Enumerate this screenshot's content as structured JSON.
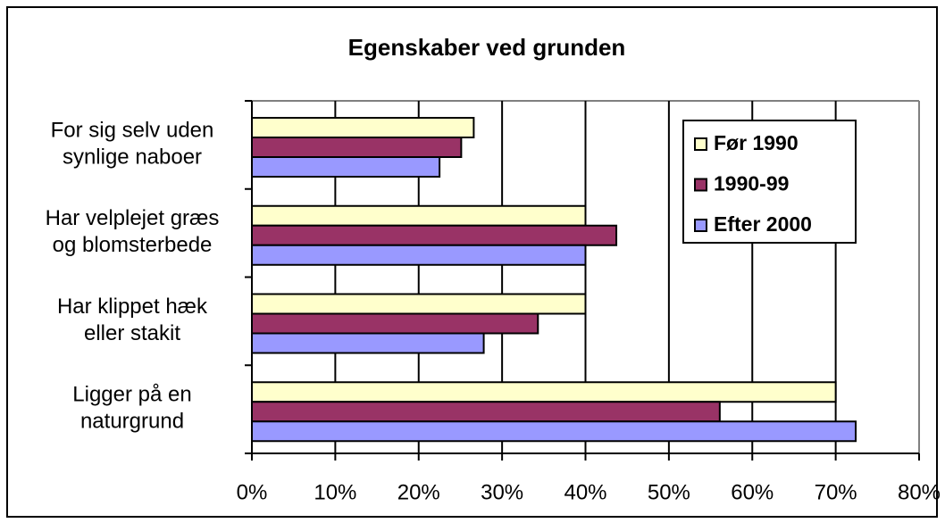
{
  "chart_data": {
    "type": "hbar",
    "title": "Egenskaber ved grunden",
    "categories": [
      "For sig selv uden\nsynlige naboer",
      "Har velplejet græs\nog blomsterbede",
      "Har klippet hæk\neller stakit",
      "Ligger på en\nnaturgrund"
    ],
    "series": [
      {
        "name": "Før 1990",
        "color": "#ffffcc",
        "values": [
          26.6,
          40,
          40,
          70
        ]
      },
      {
        "name": "1990-99",
        "color": "#993366",
        "values": [
          25.1,
          43.7,
          34.3,
          56.1
        ]
      },
      {
        "name": "Efter 2000",
        "color": "#9999ff",
        "values": [
          22.5,
          40,
          27.8,
          72.4
        ]
      }
    ],
    "xlim": [
      0,
      80
    ],
    "xticks": [
      {
        "value": 0,
        "label": "0%"
      },
      {
        "value": 10,
        "label": "10%"
      },
      {
        "value": 20,
        "label": "20%"
      },
      {
        "value": 30,
        "label": "30%"
      },
      {
        "value": 40,
        "label": "40%"
      },
      {
        "value": 50,
        "label": "50%"
      },
      {
        "value": 60,
        "label": "60%"
      },
      {
        "value": 70,
        "label": "70%"
      },
      {
        "value": 80,
        "label": "80%"
      }
    ],
    "grid": true,
    "legend": "upper right"
  }
}
